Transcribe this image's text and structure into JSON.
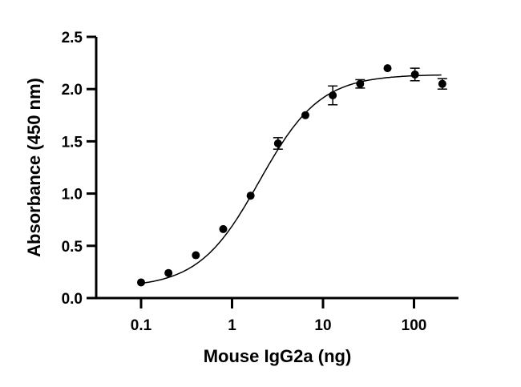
{
  "chart_data": {
    "type": "scatter",
    "title": "",
    "xlabel": "Mouse IgG2a (ng)",
    "ylabel": "Absorbance (450 nm)",
    "xscale": "log",
    "xlim": [
      0.05,
      280
    ],
    "ylim": [
      0,
      2.5
    ],
    "xticks": [
      "0.1",
      "1",
      "10",
      "100"
    ],
    "xtick_values": [
      0.1,
      1,
      10,
      100
    ],
    "yticks": [
      "0.0",
      "0.5",
      "1.0",
      "1.5",
      "2.0",
      "2.5"
    ],
    "ytick_values": [
      0,
      0.5,
      1.0,
      1.5,
      2.0,
      2.5
    ],
    "grid": false,
    "series": [
      {
        "x": [
          0.1,
          0.2,
          0.4,
          0.8,
          1.6,
          3.2,
          6.4,
          12.8,
          25.6,
          51.2,
          102.4,
          204.8
        ],
        "y": [
          0.15,
          0.24,
          0.41,
          0.66,
          0.98,
          1.48,
          1.75,
          1.94,
          2.05,
          2.2,
          2.14,
          2.05
        ],
        "error": [
          0,
          0,
          0,
          0,
          0,
          0.055,
          0,
          0.09,
          0.04,
          0,
          0.06,
          0.05
        ]
      }
    ],
    "fit": {
      "model": "4PL",
      "bottom": 0.1,
      "top": 2.14,
      "ec50": 2.0,
      "hill": 1.3,
      "x_range": [
        0.1,
        200
      ]
    },
    "colors": {
      "points": "#000000",
      "curve": "#000000"
    }
  }
}
